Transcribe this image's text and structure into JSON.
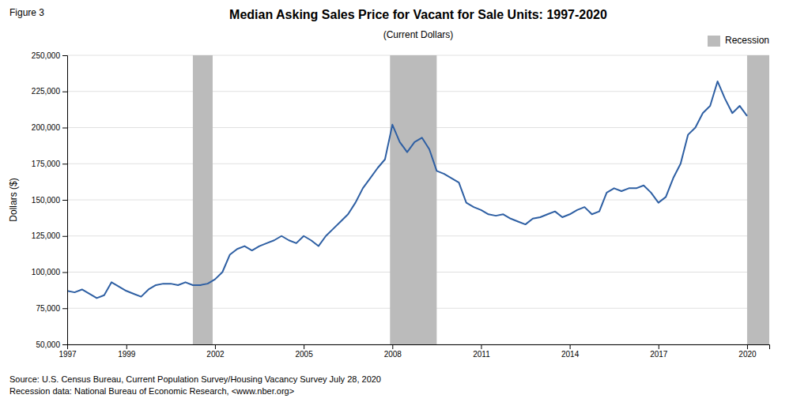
{
  "chart_data": {
    "type": "line",
    "title": "Median Asking Sales Price for Vacant for Sale Units: 1997-2020",
    "subtitle": "(Current Dollars)",
    "ylabel": "Dollars ($)",
    "annotations": [
      "Figure 3",
      "Source: U.S. Census Bureau, Current Population Survey/Housing Vacancy Survey July 28, 2020",
      "Recession data: National Bureau of Economic Research, <www.nber.org>"
    ],
    "x": [
      1997.0,
      1997.25,
      1997.5,
      1997.75,
      1998.0,
      1998.25,
      1998.5,
      1998.75,
      1999.0,
      1999.25,
      1999.5,
      1999.75,
      2000.0,
      2000.25,
      2000.5,
      2000.75,
      2001.0,
      2001.25,
      2001.5,
      2001.75,
      2002.0,
      2002.25,
      2002.5,
      2002.75,
      2003.0,
      2003.25,
      2003.5,
      2003.75,
      2004.0,
      2004.25,
      2004.5,
      2004.75,
      2005.0,
      2005.25,
      2005.5,
      2005.75,
      2006.0,
      2006.25,
      2006.5,
      2006.75,
      2007.0,
      2007.25,
      2007.5,
      2007.75,
      2008.0,
      2008.25,
      2008.5,
      2008.75,
      2009.0,
      2009.25,
      2009.5,
      2009.75,
      2010.0,
      2010.25,
      2010.5,
      2010.75,
      2011.0,
      2011.25,
      2011.5,
      2011.75,
      2012.0,
      2012.25,
      2012.5,
      2012.75,
      2013.0,
      2013.25,
      2013.5,
      2013.75,
      2014.0,
      2014.25,
      2014.5,
      2014.75,
      2015.0,
      2015.25,
      2015.5,
      2015.75,
      2016.0,
      2016.25,
      2016.5,
      2016.75,
      2017.0,
      2017.25,
      2017.5,
      2017.75,
      2018.0,
      2018.25,
      2018.5,
      2018.75,
      2019.0,
      2019.25,
      2019.5,
      2019.75,
      2020.0
    ],
    "values": [
      87000,
      86000,
      88000,
      85000,
      82000,
      84000,
      93000,
      90000,
      87000,
      85000,
      83000,
      88000,
      91000,
      92000,
      92000,
      91000,
      93000,
      91000,
      91000,
      92000,
      95000,
      100000,
      112000,
      116000,
      118000,
      115000,
      118000,
      120000,
      122000,
      125000,
      122000,
      120000,
      125000,
      122000,
      118000,
      125000,
      130000,
      135000,
      140000,
      148000,
      158000,
      165000,
      172000,
      178000,
      202000,
      190000,
      183000,
      190000,
      193000,
      185000,
      170000,
      168000,
      165000,
      162000,
      148000,
      145000,
      143000,
      140000,
      139000,
      140000,
      137000,
      135000,
      133000,
      137000,
      138000,
      140000,
      142000,
      138000,
      140000,
      143000,
      145000,
      140000,
      142000,
      155000,
      158000,
      156000,
      158000,
      158000,
      160000,
      155000,
      148000,
      152000,
      165000,
      175000,
      195000,
      200000,
      210000,
      215000,
      232000,
      220000,
      210000,
      215000,
      208000
    ],
    "color": "#2E5FA3",
    "shaded_ranges": {
      "name": "Recession",
      "color": "#BBBBBB",
      "ranges": [
        {
          "start": 2001.25,
          "end": 2001.92
        },
        {
          "start": 2007.92,
          "end": 2009.5
        },
        {
          "start": 2020.0,
          "end": 2020.75
        }
      ]
    },
    "xlim": [
      1997,
      2020.75
    ],
    "xticks": [
      1997,
      1999,
      2002,
      2005,
      2008,
      2011,
      2014,
      2017,
      2020
    ],
    "ylim": [
      50000,
      250000
    ],
    "yticks": [
      {
        "value": 50000,
        "label": "50,000"
      },
      {
        "value": 75000,
        "label": "75,000"
      },
      {
        "value": 100000,
        "label": "100,000"
      },
      {
        "value": 125000,
        "label": "125,000"
      },
      {
        "value": 150000,
        "label": "150,000"
      },
      {
        "value": 175000,
        "label": "175,000"
      },
      {
        "value": 200000,
        "label": "200,000"
      },
      {
        "value": 225000,
        "label": "225,000"
      },
      {
        "value": 250000,
        "label": "250,000"
      }
    ],
    "grid": true,
    "legend": "top-right"
  }
}
